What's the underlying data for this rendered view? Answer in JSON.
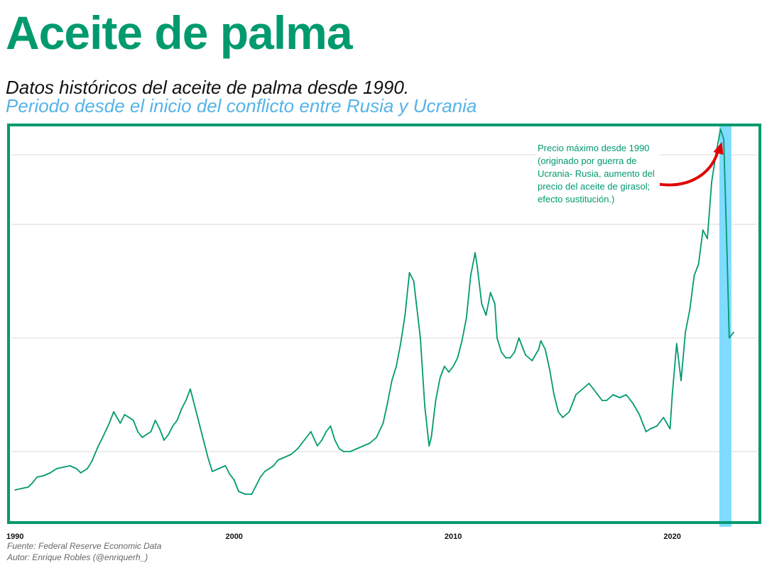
{
  "header": {
    "title": "Aceite de palma",
    "subtitle": "Datos históricos del aceite de palma desde 1990.",
    "subtitle_highlight": "Periodo desde el inicio del conflicto entre Rusia y Ucrania"
  },
  "annotation": {
    "text": "Precio máximo desde 1990 (originado por guerra de Ucrania- Rusia, aumento del precio del aceite de girasol; efecto sustitución.)"
  },
  "footer": {
    "source": "Fuente: Federal Reserve Economic Data",
    "author": "Autor: Enrique Robles (@enriquerh_)"
  },
  "colors": {
    "line": "#009a6e",
    "frame": "#009a6e",
    "highlight_band": "#7fdcff",
    "arrow": "#e00000",
    "grid": "#d9d9d9"
  },
  "chart_data": {
    "type": "line",
    "title": "Aceite de palma",
    "xlabel": "",
    "ylabel": "",
    "x_ticks": [
      "1990",
      "2000",
      "2010",
      "2020"
    ],
    "xlim": [
      1989.7,
      2024.0
    ],
    "ylim": [
      150,
      1550
    ],
    "y_gridlines": [
      400,
      800,
      1200,
      1600
    ],
    "y_tick_labels_visible": false,
    "highlight_period": [
      2022.15,
      2022.7
    ],
    "peak_annotation_point": [
      2022.2,
      1650
    ],
    "series": [
      {
        "x": [
          1990.0,
          1990.3,
          1990.6,
          1990.8,
          1991.0,
          1991.3,
          1991.6,
          1991.9,
          1992.2,
          1992.5,
          1992.8,
          1993.0,
          1993.3,
          1993.5,
          1993.8,
          1994.0,
          1994.3,
          1994.5,
          1994.8,
          1995.0,
          1995.2,
          1995.4,
          1995.6,
          1995.8,
          1996.0,
          1996.2,
          1996.4,
          1996.6,
          1996.8,
          1997.0,
          1997.2,
          1997.4,
          1997.6,
          1997.8,
          1998.0,
          1998.2,
          1998.4,
          1998.6,
          1998.8,
          1999.0,
          1999.3,
          1999.6,
          1999.8,
          2000.0,
          2000.2,
          2000.5,
          2000.8,
          2001.0,
          2001.2,
          2001.4,
          2001.6,
          2001.8,
          2002.0,
          2002.3,
          2002.6,
          2002.9,
          2003.2,
          2003.5,
          2003.8,
          2004.0,
          2004.2,
          2004.4,
          2004.6,
          2004.8,
          2005.0,
          2005.3,
          2005.6,
          2005.9,
          2006.2,
          2006.5,
          2006.8,
          2007.0,
          2007.2,
          2007.4,
          2007.6,
          2007.8,
          2008.0,
          2008.2,
          2008.5,
          2008.7,
          2008.9,
          2009.0,
          2009.2,
          2009.4,
          2009.6,
          2009.8,
          2010.0,
          2010.2,
          2010.4,
          2010.6,
          2010.8,
          2011.0,
          2011.1,
          2011.3,
          2011.5,
          2011.7,
          2011.9,
          2012.0,
          2012.2,
          2012.4,
          2012.6,
          2012.8,
          2013.0,
          2013.3,
          2013.6,
          2013.9,
          2014.0,
          2014.2,
          2014.4,
          2014.6,
          2014.8,
          2015.0,
          2015.3,
          2015.6,
          2015.9,
          2016.2,
          2016.4,
          2016.6,
          2016.8,
          2017.0,
          2017.3,
          2017.6,
          2017.9,
          2018.2,
          2018.5,
          2018.8,
          2019.0,
          2019.3,
          2019.6,
          2019.9,
          2020.0,
          2020.2,
          2020.4,
          2020.6,
          2020.8,
          2021.0,
          2021.2,
          2021.4,
          2021.6,
          2021.8,
          2022.0,
          2022.2,
          2022.35,
          2022.5,
          2022.6,
          2022.8
        ],
        "values": [
          265,
          270,
          275,
          290,
          310,
          315,
          325,
          340,
          345,
          350,
          340,
          325,
          340,
          365,
          420,
          450,
          500,
          540,
          500,
          530,
          520,
          510,
          470,
          450,
          460,
          470,
          510,
          480,
          440,
          460,
          490,
          510,
          550,
          580,
          620,
          560,
          500,
          440,
          380,
          330,
          340,
          350,
          320,
          300,
          260,
          250,
          250,
          280,
          310,
          330,
          340,
          350,
          370,
          380,
          390,
          410,
          440,
          470,
          420,
          440,
          470,
          490,
          440,
          410,
          400,
          400,
          410,
          420,
          430,
          450,
          500,
          570,
          650,
          700,
          780,
          880,
          1030,
          1000,
          800,
          560,
          420,
          450,
          580,
          660,
          700,
          680,
          700,
          730,
          790,
          870,
          1020,
          1100,
          1050,
          920,
          880,
          960,
          920,
          800,
          750,
          730,
          730,
          750,
          800,
          740,
          720,
          760,
          790,
          760,
          690,
          600,
          540,
          520,
          540,
          600,
          620,
          640,
          620,
          600,
          580,
          580,
          600,
          590,
          600,
          570,
          530,
          470,
          480,
          490,
          520,
          480,
          600,
          780,
          650,
          820,
          900,
          1020,
          1060,
          1180,
          1150,
          1350,
          1450,
          1650,
          1500,
          1100,
          800,
          820
        ]
      }
    ]
  }
}
